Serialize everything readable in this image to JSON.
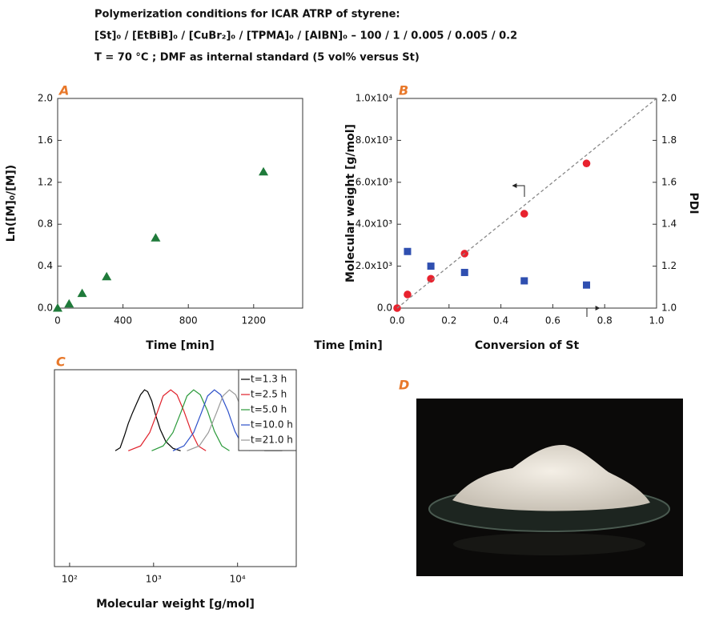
{
  "header": {
    "lines": [
      "Polymerization conditions for ICAR ATRP of styrene:",
      "[St]₀ / [EtBiB]₀ / [CuBr₂]₀ / [TPMA]₀ / [AIBN]₀ – 100 / 1 / 0.005 / 0.005 / 0.2",
      "T = 70 °C ; DMF as internal standard (5 vol% versus St)"
    ]
  },
  "extra_label": "Time [min]",
  "photo": {
    "panel_label": "D"
  },
  "chart_data": [
    {
      "type": "scatter",
      "panel_label": "A",
      "x_label": "Time [min]",
      "y_label": "Ln([M]₀/[M])",
      "x": [
        0,
        70,
        150,
        300,
        600,
        1260
      ],
      "values": [
        0,
        0.04,
        0.14,
        0.3,
        0.67,
        1.3
      ],
      "color": "#1f7a3a",
      "marker": "triangle",
      "xlim": [
        0,
        1500
      ],
      "xticks": [
        0,
        400,
        800,
        1200
      ],
      "ylim": [
        0,
        2.0
      ],
      "yticks": [
        {
          "value": 0,
          "label": "0.0"
        },
        0.4,
        0.8,
        1.2,
        1.6,
        {
          "value": 2,
          "label": "2.0"
        }
      ]
    },
    {
      "type": "scatter",
      "panel_label": "B",
      "x_label": "Conversion of St",
      "y_label": "Molecular weight [g/mol]",
      "y2_label": "PDI",
      "xlim": [
        0,
        1.0
      ],
      "xticks": [
        {
          "value": 0,
          "label": "0.0"
        },
        0.2,
        0.4,
        0.6,
        0.8,
        {
          "value": 1,
          "label": "1.0"
        }
      ],
      "ylim": [
        0,
        10000
      ],
      "yticks": [
        {
          "value": 0,
          "label": "0.0"
        },
        {
          "value": 2000,
          "label": "2.0x10³"
        },
        {
          "value": 4000,
          "label": "4.0x10³"
        },
        {
          "value": 6000,
          "label": "6.0x10³"
        },
        {
          "value": 8000,
          "label": "8.0x10³"
        },
        {
          "value": 10000,
          "label": "1.0x10⁴"
        }
      ],
      "y2lim": [
        1.0,
        2.0
      ],
      "y2ticks": [
        {
          "value": 1,
          "label": "1.0"
        },
        1.2,
        1.4,
        1.6,
        1.8,
        {
          "value": 2,
          "label": "2.0"
        }
      ],
      "series": [
        {
          "color": "#e8222e",
          "marker": "circle",
          "x": [
            0,
            0.04,
            0.13,
            0.26,
            0.49,
            0.73
          ],
          "values": [
            0,
            650,
            1400,
            2600,
            4500,
            6900
          ]
        },
        {
          "color": "#2f4fb0",
          "marker": "square",
          "axis": "y2",
          "x": [
            0.04,
            0.13,
            0.26,
            0.49,
            0.73
          ],
          "values": [
            1.27,
            1.2,
            1.17,
            1.13,
            1.11
          ]
        },
        {
          "color": "#888888",
          "style": "dashed",
          "x": [
            0,
            1.0
          ],
          "values": [
            0,
            10000
          ]
        }
      ]
    },
    {
      "type": "line",
      "panel_label": "C",
      "x_label": "Molecular weight [g/mol]",
      "xscale": "log",
      "xlim": [
        66,
        50000
      ],
      "xticks": [
        {
          "value": 100,
          "label": "10²"
        },
        {
          "value": 1000,
          "label": "10³"
        },
        {
          "value": 10000,
          "label": "10⁴"
        }
      ],
      "ylim": [
        -1.9,
        1.33
      ],
      "legend": "upper right",
      "series": [
        {
          "name": "t=1.3 h",
          "color": "#000000",
          "x": [
            350,
            400,
            450,
            500,
            560,
            630,
            700,
            780,
            850,
            950,
            1050,
            1200,
            1400,
            1700,
            2100
          ],
          "values": [
            0,
            0.05,
            0.25,
            0.45,
            0.62,
            0.78,
            0.92,
            1.0,
            0.97,
            0.82,
            0.6,
            0.35,
            0.15,
            0.04,
            0
          ]
        },
        {
          "name": "t=2.5 h",
          "color": "#e0202a",
          "x": [
            500,
            700,
            900,
            1100,
            1300,
            1600,
            1900,
            2300,
            2800,
            3400,
            4200
          ],
          "values": [
            0,
            0.08,
            0.3,
            0.62,
            0.9,
            1.0,
            0.92,
            0.65,
            0.32,
            0.08,
            0
          ]
        },
        {
          "name": "t=5.0 h",
          "color": "#2a9a3a",
          "x": [
            950,
            1300,
            1700,
            2100,
            2500,
            3000,
            3600,
            4400,
            5300,
            6500,
            8000
          ],
          "values": [
            0,
            0.08,
            0.3,
            0.62,
            0.9,
            1.0,
            0.92,
            0.65,
            0.32,
            0.08,
            0
          ]
        },
        {
          "name": "t=10.0 h",
          "color": "#2b4fc9",
          "x": [
            1700,
            2300,
            3000,
            3700,
            4400,
            5300,
            6300,
            7700,
            9300,
            11500,
            14000
          ],
          "values": [
            0,
            0.08,
            0.3,
            0.62,
            0.9,
            1.0,
            0.92,
            0.65,
            0.32,
            0.08,
            0
          ]
        },
        {
          "name": "t=21.0 h",
          "color": "#999999",
          "x": [
            2500,
            3500,
            4500,
            5600,
            6700,
            8000,
            9500,
            11500,
            14000,
            17500,
            21000,
            34000
          ],
          "values": [
            0,
            0.08,
            0.3,
            0.62,
            0.9,
            1.0,
            0.92,
            0.65,
            0.32,
            0.08,
            0,
            0
          ]
        }
      ]
    }
  ]
}
